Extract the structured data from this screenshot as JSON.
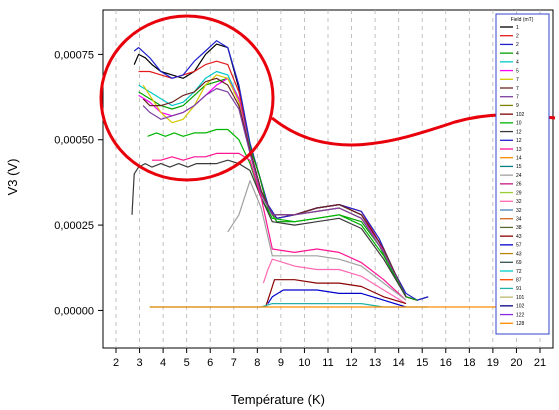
{
  "chart_data": {
    "type": "line",
    "xlabel": "Température (K)",
    "ylabel": "V3 (V)",
    "xlim": [
      1.4,
      21.6
    ],
    "ylim": [
      -0.00011,
      0.00088
    ],
    "x_ticks": [
      "2",
      "3",
      "4",
      "5",
      "6",
      "7",
      "8",
      "9",
      "10",
      "11",
      "12",
      "13",
      "14",
      "15",
      "16",
      "18",
      "19",
      "20",
      "21"
    ],
    "y_ticks": [
      {
        "value": 0.0,
        "label": "0,00000"
      },
      {
        "value": 0.00025,
        "label": "0,00025"
      },
      {
        "value": 0.0005,
        "label": "0,00050"
      },
      {
        "value": 0.00075,
        "label": "0,00075"
      }
    ],
    "legend_title": "Field (mT)",
    "grid": "vertical-dashed",
    "annotation": "red circle with curved line highlighting the 3 K to 8 K region",
    "series": [
      {
        "name": "1",
        "color": "#000000",
        "x": [
          2.8,
          3.0,
          3.3,
          3.6,
          4.0,
          4.5,
          5.0,
          5.5,
          6.0,
          6.5,
          7.0,
          7.5,
          8.0,
          8.4,
          8.8,
          9.2,
          10.0,
          11.0,
          12.0,
          13.0,
          13.8,
          14.5,
          15.0,
          15.5,
          16.0
        ],
        "values": [
          0.00072,
          0.00075,
          0.00074,
          0.00072,
          0.0007,
          0.00069,
          0.00068,
          0.0007,
          0.00075,
          0.00078,
          0.00077,
          0.00065,
          0.00048,
          0.0004,
          0.0003,
          0.00027,
          0.00028,
          0.0003,
          0.00031,
          0.00028,
          0.0002,
          0.0001,
          4e-05,
          3e-05,
          4e-05
        ]
      },
      {
        "name": "2",
        "color": "#e41a1c",
        "x": [
          3.0,
          3.5,
          4.0,
          4.5,
          5.0,
          5.5,
          6.0,
          6.5,
          7.0,
          7.5,
          8.0,
          8.4,
          8.8,
          9.2,
          10.0,
          11.0,
          12.0,
          13.0,
          13.8,
          14.5,
          15.0,
          15.5
        ],
        "values": [
          0.0007,
          0.0007,
          0.00069,
          0.00068,
          0.00069,
          0.0007,
          0.00072,
          0.00073,
          0.00072,
          0.00064,
          0.00048,
          0.0004,
          0.0003,
          0.00027,
          0.00028,
          0.0003,
          0.00031,
          0.00029,
          0.0002,
          0.0001,
          4e-05,
          3e-05
        ]
      },
      {
        "name": "2",
        "color": "#1f1fd0",
        "x": [
          2.8,
          3.0,
          3.5,
          4.0,
          4.5,
          5.0,
          5.5,
          6.0,
          6.5,
          7.0,
          7.5,
          8.0,
          8.4,
          8.8,
          9.2,
          10.0,
          11.0,
          12.0,
          13.0,
          13.8,
          14.5,
          15.0,
          15.5,
          16.0
        ],
        "values": [
          0.00076,
          0.00077,
          0.00074,
          0.0007,
          0.00068,
          0.00069,
          0.00073,
          0.00076,
          0.00079,
          0.00077,
          0.00066,
          0.00049,
          0.0004,
          0.00031,
          0.00027,
          0.00028,
          0.0003,
          0.00031,
          0.00029,
          0.00021,
          0.00011,
          5e-05,
          3e-05,
          4e-05
        ]
      },
      {
        "name": "4",
        "color": "#00a000",
        "x": [
          3.0,
          3.5,
          4.0,
          4.5,
          5.0,
          5.5,
          6.0,
          6.5,
          7.0,
          7.5,
          8.0,
          8.4,
          8.8,
          9.2,
          10.0,
          11.0,
          12.0,
          13.0,
          13.8,
          14.5,
          15.0,
          15.5
        ],
        "values": [
          0.00064,
          0.00062,
          0.0006,
          0.00059,
          0.0006,
          0.00063,
          0.00066,
          0.00067,
          0.00068,
          0.00062,
          0.00048,
          0.0004,
          0.0003,
          0.00026,
          0.00026,
          0.00027,
          0.00028,
          0.00026,
          0.00019,
          0.0001,
          4e-05,
          3e-05
        ]
      },
      {
        "name": "4",
        "color": "#00c8c8",
        "x": [
          3.0,
          3.5,
          4.0,
          4.5,
          5.0,
          5.5,
          6.0,
          6.5,
          7.0,
          7.5,
          8.0,
          8.5,
          9.0,
          10.0,
          11.0,
          12.0,
          13.0,
          13.8,
          14.5,
          15.0
        ],
        "values": [
          0.00066,
          0.00064,
          0.00062,
          0.0006,
          0.00061,
          0.00064,
          0.00068,
          0.0007,
          0.00069,
          0.00062,
          0.00047,
          0.00035,
          0.00028,
          0.00028,
          0.00029,
          0.0003,
          0.00027,
          0.0002,
          0.0001,
          4e-05
        ]
      },
      {
        "name": "5",
        "color": "#ff00ff",
        "x": [
          3.0,
          3.5,
          4.0,
          4.5,
          5.0,
          5.5,
          6.0,
          6.5,
          7.0,
          7.5,
          8.0,
          8.5,
          9.0,
          10.0,
          11.0,
          12.0,
          13.0,
          13.8,
          14.5,
          15.0
        ],
        "values": [
          0.00063,
          0.00061,
          0.00058,
          0.00057,
          0.00058,
          0.0006,
          0.00063,
          0.00066,
          0.00068,
          0.00062,
          0.00047,
          0.00035,
          0.00028,
          0.00028,
          0.00029,
          0.0003,
          0.00027,
          0.0002,
          0.0001,
          4e-05
        ]
      },
      {
        "name": "7",
        "color": "#d4c800",
        "x": [
          3.2,
          3.5,
          4.0,
          4.5,
          5.0,
          5.5,
          6.0,
          6.5,
          7.0,
          7.5,
          8.0,
          8.5,
          9.0,
          10.0,
          11.0,
          12.0,
          13.0,
          14.0,
          15.0
        ],
        "values": [
          0.00066,
          0.00063,
          0.00058,
          0.00055,
          0.00056,
          0.0006,
          0.00066,
          0.00069,
          0.00068,
          0.00061,
          0.00046,
          0.00034,
          0.00028,
          0.00028,
          0.00029,
          0.0003,
          0.00027,
          0.00017,
          4e-05
        ]
      },
      {
        "name": "7",
        "color": "#6b2222",
        "x": [
          3.2,
          3.5,
          4.0,
          4.5,
          5.0,
          5.5,
          6.0,
          6.5,
          7.0,
          7.5,
          8.0,
          8.5,
          9.0,
          10.0,
          11.0,
          12.0,
          13.0,
          14.0,
          15.0
        ],
        "values": [
          0.00062,
          0.0006,
          0.0006,
          0.00061,
          0.00063,
          0.00064,
          0.00067,
          0.00068,
          0.00066,
          0.0006,
          0.00047,
          0.00035,
          0.00028,
          0.00028,
          0.0003,
          0.00031,
          0.00028,
          0.00018,
          4e-05
        ]
      },
      {
        "name": "7",
        "color": "#7b3fa0",
        "x": [
          3.2,
          3.5,
          4.0,
          4.5,
          5.0,
          5.5,
          6.0,
          6.5,
          7.0,
          7.5,
          8.0,
          8.5,
          9.0,
          10.0,
          11.0,
          12.0,
          13.0,
          14.0,
          15.0
        ],
        "values": [
          0.0006,
          0.00058,
          0.00056,
          0.00057,
          0.00058,
          0.0006,
          0.00063,
          0.00065,
          0.00064,
          0.00059,
          0.00046,
          0.00034,
          0.00028,
          0.00028,
          0.00029,
          0.0003,
          0.00027,
          0.00017,
          4e-05
        ]
      },
      {
        "name": "10",
        "color": "#00b400",
        "x": [
          3.4,
          3.8,
          4.2,
          4.6,
          5.0,
          5.5,
          6.0,
          6.5,
          7.0,
          7.5,
          8.0,
          8.5,
          9.0,
          10.0,
          11.0,
          12.0,
          13.0,
          14.0,
          15.0
        ],
        "values": [
          0.00051,
          0.00052,
          0.00051,
          0.00052,
          0.00051,
          0.00052,
          0.00052,
          0.00053,
          0.00053,
          0.0005,
          0.00043,
          0.00033,
          0.00027,
          0.00026,
          0.00027,
          0.00028,
          0.00025,
          0.00016,
          4e-05
        ]
      },
      {
        "name": "12",
        "color": "#3a3a3a",
        "x": [
          2.7,
          2.8,
          3.0,
          3.3,
          3.6,
          4.0,
          4.4,
          4.8,
          5.2,
          5.6,
          6.0,
          6.5,
          7.0,
          7.5,
          8.0,
          8.5,
          9.0,
          10.0,
          11.0,
          12.0,
          13.0,
          14.0,
          15.0
        ],
        "values": [
          0.00028,
          0.0004,
          0.00042,
          0.00043,
          0.00042,
          0.00043,
          0.00042,
          0.00043,
          0.00042,
          0.00043,
          0.00043,
          0.00043,
          0.00044,
          0.00043,
          0.00041,
          0.00033,
          0.00026,
          0.00025,
          0.00026,
          0.00027,
          0.00024,
          0.00015,
          4e-05
        ]
      },
      {
        "name": "13",
        "color": "#ff1493",
        "x": [
          3.6,
          4.0,
          4.5,
          5.0,
          5.5,
          6.0,
          6.5,
          7.0,
          7.5,
          8.0,
          8.5,
          9.0,
          10.0,
          11.0,
          12.0,
          13.0,
          14.0,
          15.0
        ],
        "values": [
          0.00044,
          0.00044,
          0.00045,
          0.00044,
          0.00045,
          0.00045,
          0.00046,
          0.00046,
          0.00046,
          0.00044,
          0.00033,
          0.00018,
          0.00017,
          0.00018,
          0.00017,
          0.00014,
          9e-05,
          3e-05
        ]
      },
      {
        "name": "24",
        "color": "#a0a0a0",
        "x": [
          7.0,
          7.5,
          8.0,
          8.5,
          9.0,
          9.5,
          10.0,
          11.0,
          12.0,
          13.0,
          14.0,
          15.0
        ],
        "values": [
          0.00023,
          0.00028,
          0.00038,
          0.0003,
          0.00016,
          0.00016,
          0.00016,
          0.00016,
          0.00015,
          0.00013,
          8e-05,
          3e-05
        ]
      },
      {
        "name": "32",
        "color": "#ff69b4",
        "x": [
          8.6,
          8.8,
          9.0,
          9.5,
          10.0,
          11.0,
          12.0,
          13.0,
          14.0,
          15.0
        ],
        "values": [
          8e-05,
          0.00012,
          0.00015,
          0.00014,
          0.00013,
          0.00012,
          0.00012,
          0.0001,
          6e-05,
          2e-05
        ]
      },
      {
        "name": "43",
        "color": "#8b0000",
        "x": [
          8.7,
          8.9,
          9.1,
          9.5,
          10.0,
          11.0,
          12.0,
          13.0,
          14.0,
          15.0
        ],
        "values": [
          1e-05,
          5e-05,
          9e-05,
          9e-05,
          9e-05,
          8e-05,
          8e-05,
          7e-05,
          4e-05,
          2e-05
        ]
      },
      {
        "name": "57",
        "color": "#0000cd",
        "x": [
          8.8,
          9.0,
          9.5,
          10.0,
          11.0,
          12.0,
          13.0,
          14.0,
          15.0
        ],
        "values": [
          2e-05,
          4e-05,
          6e-05,
          6e-05,
          6e-05,
          5e-05,
          5e-05,
          3e-05,
          1e-05
        ]
      },
      {
        "name": "91",
        "color": "#20b2aa",
        "x": [
          3.5,
          6.0,
          8.5,
          9.0,
          10.0,
          11.0,
          12.0,
          13.0,
          14.0,
          15.0,
          16.0
        ],
        "values": [
          1e-05,
          1e-05,
          1e-05,
          2e-05,
          2e-05,
          2e-05,
          2e-05,
          2e-05,
          1e-05,
          1e-05,
          1e-05
        ]
      },
      {
        "name": "128",
        "color": "#ff8c00",
        "x": [
          3.5,
          6.0,
          9.0,
          12.0,
          15.0,
          18.0,
          21.0
        ],
        "values": [
          1e-05,
          1e-05,
          1e-05,
          1e-05,
          1e-05,
          1e-05,
          1e-05
        ]
      }
    ],
    "legend_entries": [
      {
        "label": "1",
        "color": "#000000"
      },
      {
        "label": "2",
        "color": "#e41a1c"
      },
      {
        "label": "2",
        "color": "#1f1fd0"
      },
      {
        "label": "4",
        "color": "#00a000"
      },
      {
        "label": "4",
        "color": "#00c8c8"
      },
      {
        "label": "5",
        "color": "#ff00ff"
      },
      {
        "label": "7",
        "color": "#d4c800"
      },
      {
        "label": "7",
        "color": "#6b2222"
      },
      {
        "label": "7",
        "color": "#7b3fa0"
      },
      {
        "label": "9",
        "color": "#808000"
      },
      {
        "label": "102",
        "color": "#800000"
      },
      {
        "label": "10",
        "color": "#00b400"
      },
      {
        "label": "12",
        "color": "#3a3a3a"
      },
      {
        "label": "12",
        "color": "#1f1fd0"
      },
      {
        "label": "13",
        "color": "#ff1493"
      },
      {
        "label": "14",
        "color": "#ff8c00"
      },
      {
        "label": "15",
        "color": "#008080"
      },
      {
        "label": "24",
        "color": "#a0a0a0"
      },
      {
        "label": "26",
        "color": "#c71585"
      },
      {
        "label": "29",
        "color": "#9acd32"
      },
      {
        "label": "32",
        "color": "#ff69b4"
      },
      {
        "label": "32",
        "color": "#4682b4"
      },
      {
        "label": "34",
        "color": "#d2691e"
      },
      {
        "label": "38",
        "color": "#556b2f"
      },
      {
        "label": "43",
        "color": "#8b0000"
      },
      {
        "label": "57",
        "color": "#0000cd"
      },
      {
        "label": "43",
        "color": "#b8860b"
      },
      {
        "label": "69",
        "color": "#2f4f4f"
      },
      {
        "label": "72",
        "color": "#00ced1"
      },
      {
        "label": "87",
        "color": "#ff4500"
      },
      {
        "label": "91",
        "color": "#20b2aa"
      },
      {
        "label": "101",
        "color": "#bdb76b"
      },
      {
        "label": "102",
        "color": "#000080"
      },
      {
        "label": "122",
        "color": "#8a2be2"
      },
      {
        "label": "128",
        "color": "#ff8c00"
      }
    ]
  }
}
